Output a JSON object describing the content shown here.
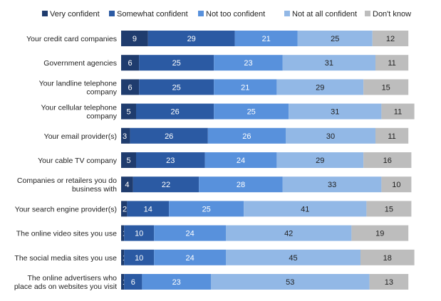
{
  "chart_data": {
    "type": "bar",
    "orientation": "horizontal",
    "stacked": true,
    "title": "",
    "xlabel": "",
    "ylabel": "",
    "xlim": [
      0,
      100
    ],
    "grid": false,
    "legend_position": "top",
    "categories": [
      [
        "Your credit card companies"
      ],
      [
        "Government agencies"
      ],
      [
        "Your landline telephone",
        "company"
      ],
      [
        "Your cellular telephone",
        "company"
      ],
      [
        "Your email provider(s)"
      ],
      [
        "Your cable TV company"
      ],
      [
        "Companies or retailers you do",
        "business with"
      ],
      [
        "Your search engine provider(s)"
      ],
      [
        "The online video sites you use"
      ],
      [
        "The social media sites you use"
      ],
      [
        "The online advertisers who",
        "place ads on websites you visit"
      ]
    ],
    "series": [
      {
        "name": "Very confident",
        "color": "#1f3c6e",
        "label_color": "#ffffff",
        "values": [
          9,
          6,
          6,
          5,
          3,
          5,
          4,
          2,
          1,
          1,
          1
        ]
      },
      {
        "name": "Somewhat confident",
        "color": "#2b5aa3",
        "label_color": "#ffffff",
        "values": [
          29,
          25,
          25,
          26,
          26,
          23,
          22,
          14,
          10,
          10,
          6
        ]
      },
      {
        "name": "Not too confident",
        "color": "#5891dc",
        "label_color": "#ffffff",
        "values": [
          21,
          23,
          21,
          25,
          26,
          24,
          28,
          25,
          24,
          24,
          23
        ]
      },
      {
        "name": "Not at all confident",
        "color": "#92b8e6",
        "label_color": "#222222",
        "values": [
          25,
          31,
          29,
          31,
          30,
          29,
          33,
          41,
          42,
          45,
          53
        ]
      },
      {
        "name": "Don't know",
        "color": "#bdbdbd",
        "label_color": "#222222",
        "values": [
          12,
          11,
          15,
          11,
          11,
          16,
          10,
          15,
          19,
          18,
          13
        ]
      }
    ]
  }
}
